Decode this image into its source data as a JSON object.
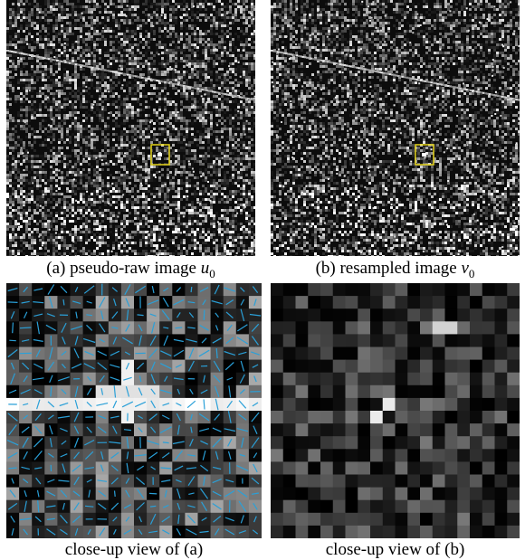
{
  "figure": {
    "panels": [
      {
        "id": "a",
        "caption_prefix": "(a) pseudo-raw image ",
        "caption_var": "u",
        "caption_sub": "0",
        "content": "SAR image, speckled terrain with a bright line and a highlighted square"
      },
      {
        "id": "b",
        "caption_prefix": "(b) resampled image ",
        "caption_var": "v",
        "caption_sub": "0",
        "content": "resampled SAR image with highlighted square"
      },
      {
        "id": "a_zoom",
        "caption": "close-up view of (a)",
        "content": "pixel close-up with blue orientation vectors"
      },
      {
        "id": "b_zoom",
        "caption": "close-up view of (b)",
        "content": "pixel close-up"
      }
    ],
    "colors": {
      "highlight_box": "#e6d51c",
      "vector": "#2aa0d8",
      "background": "#ffffff"
    }
  }
}
